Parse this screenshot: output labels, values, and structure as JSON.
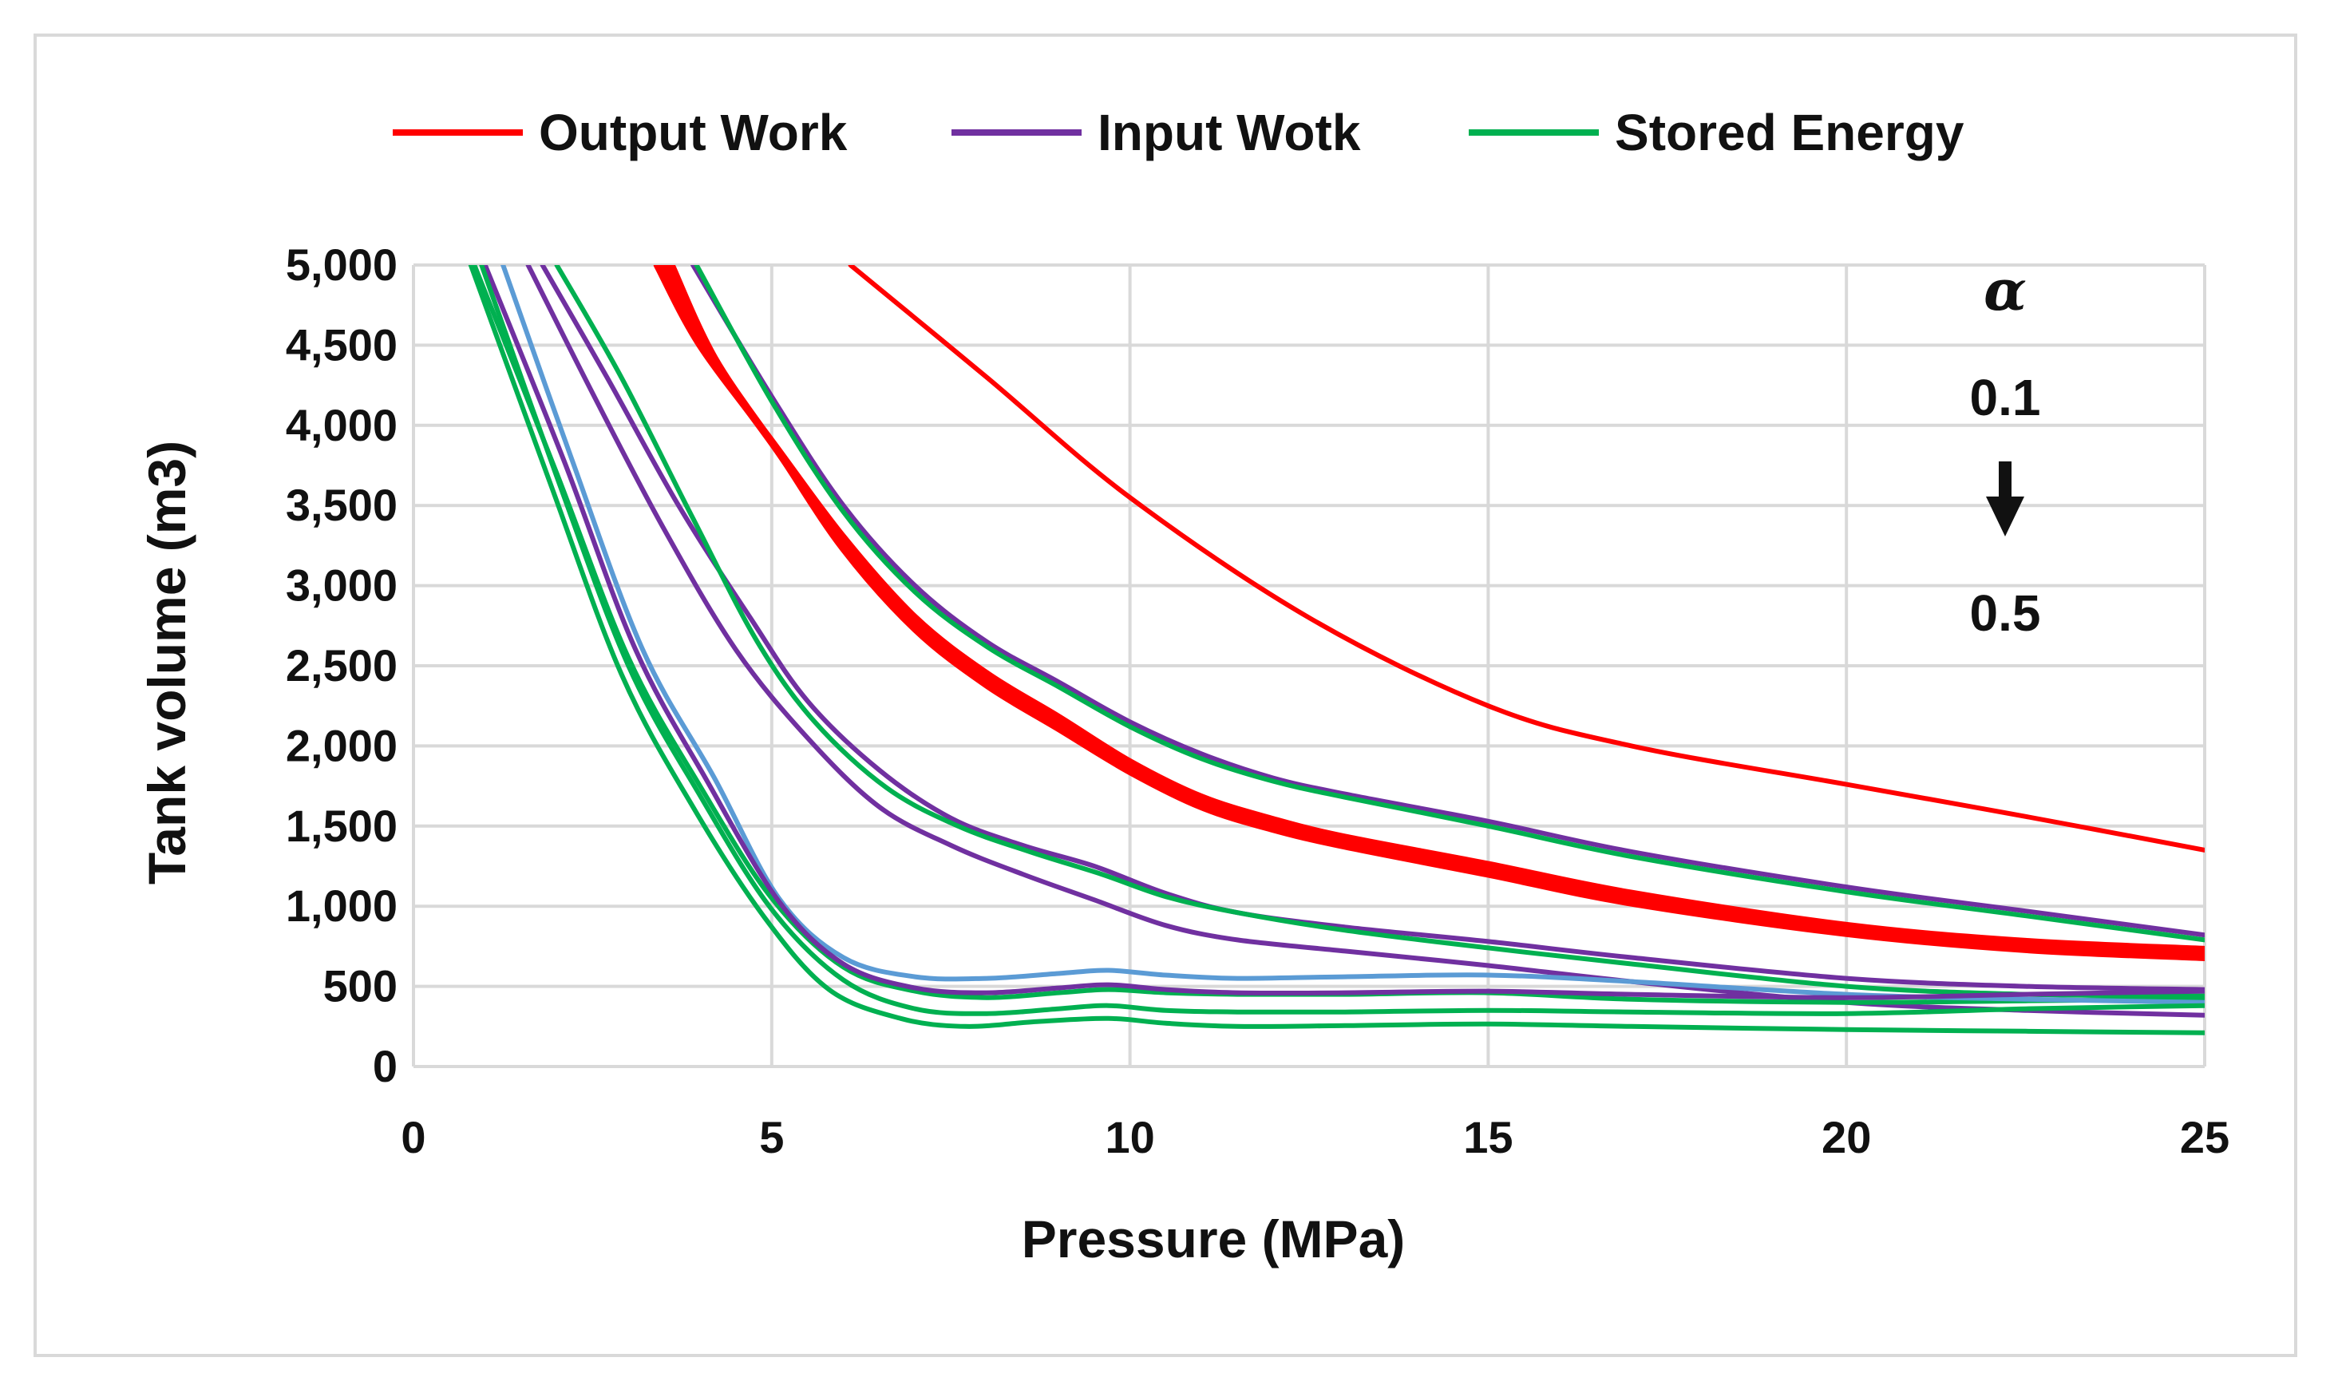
{
  "chart_data": {
    "type": "line",
    "xlabel": "Pressure (MPa)",
    "ylabel": "Tank volume (m3)",
    "xlim": [
      0,
      25
    ],
    "ylim": [
      0,
      5000
    ],
    "x_ticks": [
      "0",
      "5",
      "10",
      "15",
      "20",
      "25"
    ],
    "y_ticks": [
      "0",
      "500",
      "1,000",
      "1,500",
      "2,000",
      "2,500",
      "3,000",
      "3,500",
      "4,000",
      "4,500",
      "5,000"
    ],
    "grid": true,
    "legend_position": "top",
    "legend": [
      {
        "name": "Output Work",
        "color": "#ff0000"
      },
      {
        "name": "Input Wotk",
        "color": "#7030a0"
      },
      {
        "name": "Stored Energy",
        "color": "#00b050"
      }
    ],
    "annotations": {
      "symbol": "α",
      "top": "0.1",
      "bottom": "0.5",
      "arrow": "down"
    },
    "series": [
      {
        "name": "Output Work",
        "alpha": "0.1",
        "color": "#ff0000",
        "width": 2,
        "points": [
          [
            6.1,
            5000
          ],
          [
            8,
            4300
          ],
          [
            10,
            3550
          ],
          [
            12.5,
            2800
          ],
          [
            15,
            2250
          ],
          [
            17,
            2000
          ],
          [
            20,
            1760
          ],
          [
            22.5,
            1560
          ],
          [
            25,
            1350
          ]
        ]
      },
      {
        "name": "Output Work",
        "color": "#ff0000",
        "width": 3,
        "points": [
          [
            3.4,
            5000
          ],
          [
            4,
            4500
          ],
          [
            5,
            3900
          ],
          [
            6,
            3300
          ],
          [
            7,
            2800
          ],
          [
            8,
            2450
          ],
          [
            9,
            2180
          ],
          [
            10,
            1900
          ],
          [
            11,
            1680
          ],
          [
            12,
            1540
          ],
          [
            13,
            1430
          ],
          [
            15,
            1260
          ],
          [
            17,
            1080
          ],
          [
            20,
            880
          ],
          [
            22.5,
            780
          ],
          [
            25,
            730
          ]
        ]
      },
      {
        "name": "Output Work",
        "color": "#ff0000",
        "width": 3,
        "points": [
          [
            3.5,
            5000
          ],
          [
            4.1,
            4460
          ],
          [
            5.05,
            3860
          ],
          [
            6,
            3260
          ],
          [
            7,
            2760
          ],
          [
            8,
            2410
          ],
          [
            9,
            2140
          ],
          [
            10,
            1870
          ],
          [
            11,
            1650
          ],
          [
            12,
            1510
          ],
          [
            13,
            1400
          ],
          [
            15,
            1230
          ],
          [
            17,
            1050
          ],
          [
            20,
            850
          ],
          [
            22.5,
            750
          ],
          [
            25,
            700
          ]
        ]
      },
      {
        "name": "Output Work",
        "color": "#ff0000",
        "width": 3,
        "points": [
          [
            3.6,
            5000
          ],
          [
            4.2,
            4420
          ],
          [
            5.1,
            3830
          ],
          [
            6,
            3230
          ],
          [
            7,
            2730
          ],
          [
            8,
            2380
          ],
          [
            9,
            2110
          ],
          [
            10,
            1840
          ],
          [
            11,
            1620
          ],
          [
            12,
            1480
          ],
          [
            13,
            1375
          ],
          [
            15,
            1200
          ],
          [
            17,
            1020
          ],
          [
            20,
            830
          ],
          [
            22.5,
            730
          ],
          [
            25,
            680
          ]
        ]
      },
      {
        "name": "Input Wotk",
        "color": "#7030a0",
        "width": 2,
        "points": [
          [
            3.9,
            5000
          ],
          [
            5,
            4180
          ],
          [
            6,
            3500
          ],
          [
            7,
            3000
          ],
          [
            8,
            2650
          ],
          [
            9,
            2400
          ],
          [
            10,
            2150
          ],
          [
            11,
            1950
          ],
          [
            12,
            1800
          ],
          [
            13,
            1700
          ],
          [
            15,
            1530
          ],
          [
            17,
            1340
          ],
          [
            20,
            1120
          ],
          [
            22.5,
            970
          ],
          [
            25,
            820
          ]
        ]
      },
      {
        "name": "Stored Energy",
        "color": "#00b050",
        "width": 2,
        "points": [
          [
            3.95,
            5000
          ],
          [
            5,
            4150
          ],
          [
            6,
            3460
          ],
          [
            7,
            2960
          ],
          [
            8,
            2620
          ],
          [
            9,
            2370
          ],
          [
            10,
            2120
          ],
          [
            11,
            1920
          ],
          [
            12,
            1780
          ],
          [
            13,
            1680
          ],
          [
            15,
            1500
          ],
          [
            17,
            1310
          ],
          [
            20,
            1090
          ],
          [
            22.5,
            940
          ],
          [
            25,
            790
          ]
        ]
      },
      {
        "name": "Input Wotk",
        "color": "#7030a0",
        "width": 2,
        "points": [
          [
            1.6,
            5000
          ],
          [
            2.5,
            4200
          ],
          [
            3.5,
            3350
          ],
          [
            4.5,
            2600
          ],
          [
            5.5,
            2050
          ],
          [
            6.5,
            1620
          ],
          [
            7.5,
            1380
          ],
          [
            8.5,
            1200
          ],
          [
            9.5,
            1040
          ],
          [
            10.5,
            880
          ],
          [
            11.5,
            790
          ],
          [
            13,
            720
          ],
          [
            15,
            630
          ],
          [
            17,
            530
          ],
          [
            20,
            400
          ],
          [
            22.5,
            350
          ],
          [
            25,
            320
          ]
        ]
      },
      {
        "name": "Input Wotk",
        "color": "#7030a0",
        "width": 2,
        "points": [
          [
            1.8,
            5000
          ],
          [
            2.7,
            4300
          ],
          [
            3.7,
            3500
          ],
          [
            4.7,
            2800
          ],
          [
            5.5,
            2280
          ],
          [
            6.5,
            1850
          ],
          [
            7.5,
            1550
          ],
          [
            8.5,
            1380
          ],
          [
            9.5,
            1250
          ],
          [
            10.5,
            1080
          ],
          [
            11.5,
            960
          ],
          [
            13,
            870
          ],
          [
            15,
            780
          ],
          [
            17,
            680
          ],
          [
            20,
            550
          ],
          [
            22.5,
            500
          ],
          [
            25,
            480
          ]
        ]
      },
      {
        "name": "Stored Energy",
        "color": "#00b050",
        "width": 2,
        "points": [
          [
            2,
            5000
          ],
          [
            2.9,
            4300
          ],
          [
            3.9,
            3420
          ],
          [
            4.8,
            2650
          ],
          [
            5.6,
            2150
          ],
          [
            6.6,
            1740
          ],
          [
            7.6,
            1500
          ],
          [
            8.6,
            1340
          ],
          [
            9.6,
            1200
          ],
          [
            10.5,
            1060
          ],
          [
            11.5,
            960
          ],
          [
            13,
            850
          ],
          [
            15,
            740
          ],
          [
            17,
            640
          ],
          [
            20,
            500
          ],
          [
            22.5,
            450
          ],
          [
            25,
            440
          ]
        ]
      },
      {
        "name": "Stored Energy",
        "color": "#00b050",
        "width": 2,
        "points": [
          [
            0.85,
            5000
          ],
          [
            2,
            3700
          ],
          [
            3,
            2550
          ],
          [
            4,
            1750
          ],
          [
            5,
            1050
          ],
          [
            6,
            620
          ],
          [
            7,
            470
          ],
          [
            8,
            430
          ],
          [
            9,
            460
          ],
          [
            9.7,
            480
          ],
          [
            10.5,
            460
          ],
          [
            11.5,
            450
          ],
          [
            13,
            450
          ],
          [
            15,
            460
          ],
          [
            17,
            420
          ],
          [
            20,
            400
          ],
          [
            22.5,
            410
          ],
          [
            25,
            420
          ]
        ]
      },
      {
        "name": "Series alpha 0.1 (blue)",
        "color": "#5b9bd5",
        "width": 2,
        "points": [
          [
            1.25,
            5000
          ],
          [
            2.2,
            3800
          ],
          [
            3.2,
            2600
          ],
          [
            4.2,
            1800
          ],
          [
            5.1,
            1050
          ],
          [
            6,
            680
          ],
          [
            7,
            560
          ],
          [
            8,
            550
          ],
          [
            9,
            580
          ],
          [
            9.7,
            600
          ],
          [
            10.5,
            570
          ],
          [
            11.5,
            550
          ],
          [
            13,
            560
          ],
          [
            15,
            570
          ],
          [
            17,
            530
          ],
          [
            20,
            450
          ],
          [
            22.5,
            420
          ],
          [
            25,
            400
          ]
        ]
      },
      {
        "name": "Input Wotk",
        "color": "#7030a0",
        "width": 2,
        "points": [
          [
            1,
            5000
          ],
          [
            2.1,
            3780
          ],
          [
            3.1,
            2600
          ],
          [
            4.1,
            1780
          ],
          [
            5.1,
            1030
          ],
          [
            6,
            640
          ],
          [
            7,
            490
          ],
          [
            8,
            460
          ],
          [
            9,
            490
          ],
          [
            9.7,
            510
          ],
          [
            10.5,
            480
          ],
          [
            11.5,
            460
          ],
          [
            13,
            460
          ],
          [
            15,
            470
          ],
          [
            17,
            450
          ],
          [
            20,
            430
          ],
          [
            22.5,
            450
          ],
          [
            25,
            470
          ]
        ]
      },
      {
        "name": "Stored Energy",
        "color": "#00b050",
        "width": 2,
        "points": [
          [
            0.95,
            5000
          ],
          [
            2,
            3680
          ],
          [
            3,
            2500
          ],
          [
            4,
            1690
          ],
          [
            5,
            980
          ],
          [
            6,
            540
          ],
          [
            7,
            360
          ],
          [
            8,
            330
          ],
          [
            9,
            360
          ],
          [
            9.7,
            380
          ],
          [
            10.5,
            350
          ],
          [
            11.5,
            340
          ],
          [
            13,
            340
          ],
          [
            15,
            350
          ],
          [
            17,
            340
          ],
          [
            20,
            330
          ],
          [
            22.5,
            360
          ],
          [
            25,
            380
          ]
        ]
      },
      {
        "name": "Stored Energy",
        "color": "#00b050",
        "width": 2,
        "points": [
          [
            0.8,
            5000
          ],
          [
            1.9,
            3650
          ],
          [
            2.9,
            2450
          ],
          [
            3.9,
            1620
          ],
          [
            4.9,
            930
          ],
          [
            5.8,
            480
          ],
          [
            6.8,
            300
          ],
          [
            7.7,
            250
          ],
          [
            8.7,
            280
          ],
          [
            9.7,
            300
          ],
          [
            10.5,
            270
          ],
          [
            11.5,
            250
          ],
          [
            13,
            255
          ],
          [
            15,
            265
          ],
          [
            17,
            250
          ],
          [
            20,
            230
          ],
          [
            22.5,
            220
          ],
          [
            25,
            210
          ]
        ]
      }
    ]
  }
}
